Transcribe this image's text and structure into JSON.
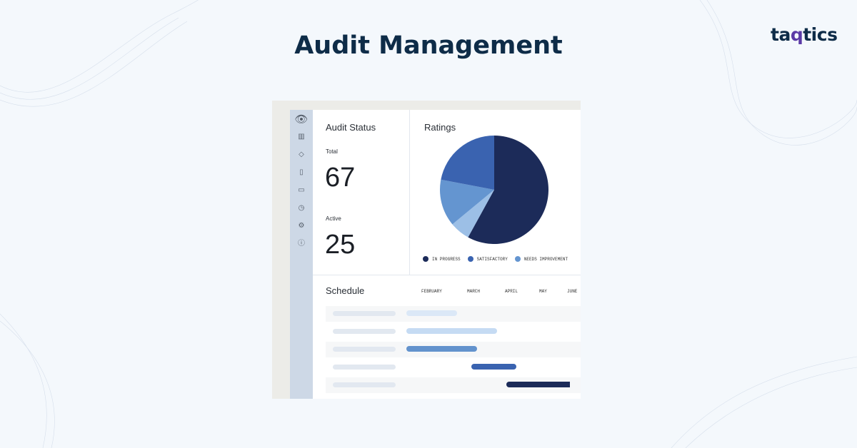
{
  "page": {
    "title": "Audit Management",
    "logo": {
      "pre": "ta",
      "q": "q",
      "post": "tics"
    }
  },
  "sidebar": {
    "icons": [
      "logo-eye-icon",
      "bar-chart-icon",
      "shield-icon",
      "document-icon",
      "folder-icon",
      "clock-icon",
      "gear-icon",
      "help-icon"
    ]
  },
  "audit_status": {
    "title": "Audit Status",
    "total_label": "Total",
    "total": "67",
    "active_label": "Active",
    "active": "25"
  },
  "ratings": {
    "title": "Ratings",
    "chart_data": {
      "type": "pie",
      "slices": [
        {
          "name": "IN PROGRESS",
          "value": 58,
          "color": "#1c2b59"
        },
        {
          "name": "",
          "value": 6,
          "color": "#9cbfe6"
        },
        {
          "name": "NEEDS IMPROVEMENT",
          "value": 14,
          "color": "#6495d0"
        },
        {
          "name": "SATISFACTORY",
          "value": 22,
          "color": "#3a63b0"
        }
      ]
    },
    "legend": [
      {
        "label": "IN PROGRESS",
        "color": "#1c2b59"
      },
      {
        "label": "SATISFACTORY",
        "color": "#3a63b0"
      },
      {
        "label": "NEEDS IMPROVEMENT",
        "color": "#6495d0"
      }
    ]
  },
  "schedule": {
    "title": "Schedule",
    "months": [
      "FEBRUARY",
      "MARCH",
      "APRIL",
      "MAY",
      "JUNE"
    ],
    "bars": [
      {
        "color": "#dbe8f7"
      },
      {
        "color": "#c5dbf3"
      },
      {
        "color": "#6393cd"
      },
      {
        "color": "#3a63b0"
      },
      {
        "color": "#1c2b59"
      }
    ]
  }
}
